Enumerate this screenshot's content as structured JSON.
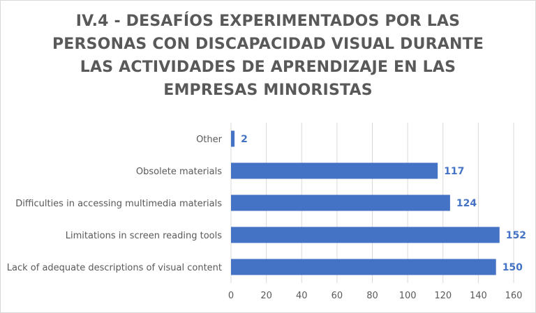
{
  "chart_data": {
    "type": "bar",
    "orientation": "horizontal",
    "title_lines": [
      "IV.4 - DESAFÍOS EXPERIMENTADOS POR LAS",
      "PERSONAS CON DISCAPACIDAD VISUAL DURANTE",
      "LAS ACTIVIDADES DE APRENDIZAJE EN LAS",
      "EMPRESAS MINORISTAS"
    ],
    "categories": [
      "Other",
      "Obsolete materials",
      "Difficulties in accessing multimedia materials",
      "Limitations in screen reading tools",
      "Lack of adequate descriptions of visual content"
    ],
    "values": [
      2,
      117,
      124,
      152,
      150
    ],
    "xlim": [
      0,
      160
    ],
    "xticks": [
      0,
      20,
      40,
      60,
      80,
      100,
      120,
      140,
      160
    ],
    "grid": "vertical",
    "data_labels": true,
    "bar_color": "#4472c4",
    "grid_color": "#d9d9d9",
    "text_color": "#595959"
  }
}
